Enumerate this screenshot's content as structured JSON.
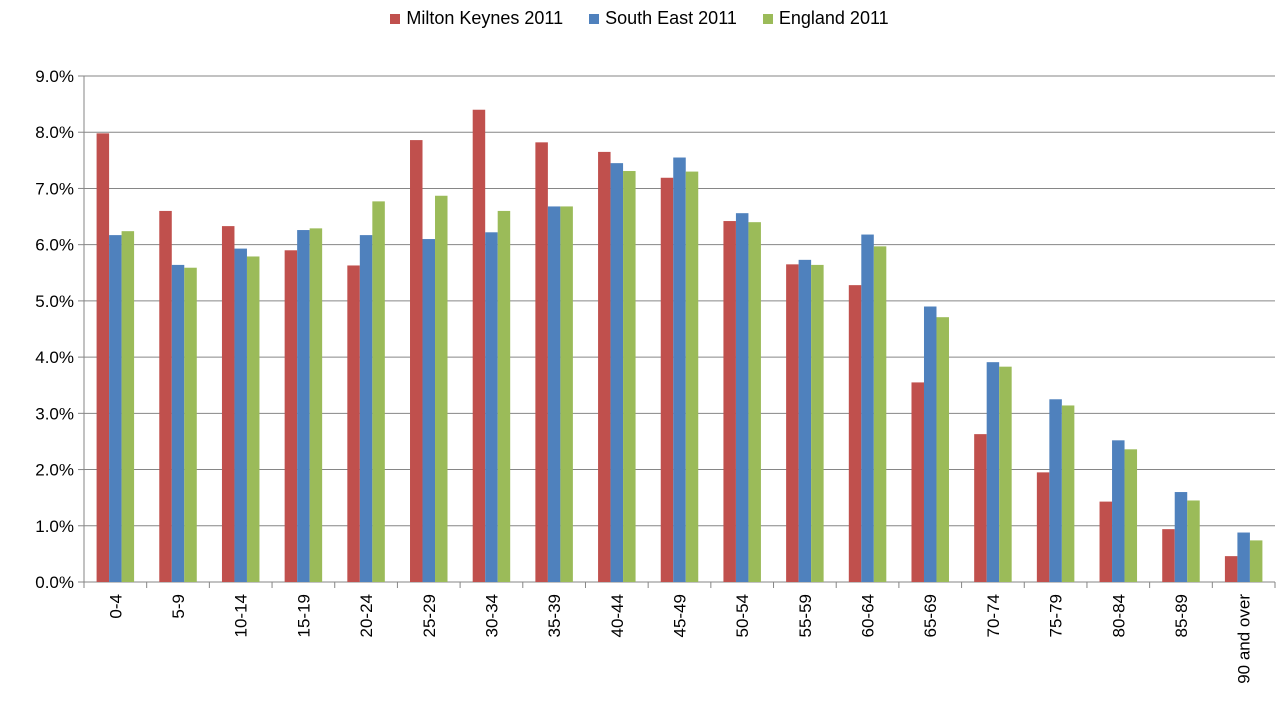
{
  "chart_data": {
    "type": "bar",
    "title": "",
    "xlabel": "",
    "ylabel": "",
    "ylim": [
      0,
      9
    ],
    "yticks": [
      0,
      1,
      2,
      3,
      4,
      5,
      6,
      7,
      8,
      9
    ],
    "ytick_labels": [
      "0.0%",
      "1.0%",
      "2.0%",
      "3.0%",
      "4.0%",
      "5.0%",
      "6.0%",
      "7.0%",
      "8.0%",
      "9.0%"
    ],
    "grid": true,
    "legend_position": "top-center",
    "categories": [
      "0-4",
      "5-9",
      "10-14",
      "15-19",
      "20-24",
      "25-29",
      "30-34",
      "35-39",
      "40-44",
      "45-49",
      "50-54",
      "55-59",
      "60-64",
      "65-69",
      "70-74",
      "75-79",
      "80-84",
      "85-89",
      "90 and over"
    ],
    "series": [
      {
        "name": "Milton Keynes 2011",
        "color": "#c0504d",
        "values": [
          7.98,
          6.6,
          6.33,
          5.9,
          5.63,
          7.86,
          8.4,
          7.82,
          7.65,
          7.19,
          6.42,
          5.65,
          5.28,
          3.55,
          2.63,
          1.95,
          1.43,
          0.94,
          0.46
        ]
      },
      {
        "name": "South East 2011",
        "color": "#4f81bd",
        "values": [
          6.17,
          5.64,
          5.93,
          6.26,
          6.17,
          6.1,
          6.22,
          6.68,
          7.45,
          7.55,
          6.56,
          5.73,
          6.18,
          4.9,
          3.91,
          3.25,
          2.52,
          1.6,
          0.88
        ]
      },
      {
        "name": "England 2011",
        "color": "#9bbb59",
        "values": [
          6.24,
          5.59,
          5.79,
          6.29,
          6.77,
          6.87,
          6.6,
          6.68,
          7.31,
          7.3,
          6.4,
          5.64,
          5.97,
          4.71,
          3.83,
          3.14,
          2.36,
          1.45,
          0.74
        ]
      }
    ]
  }
}
